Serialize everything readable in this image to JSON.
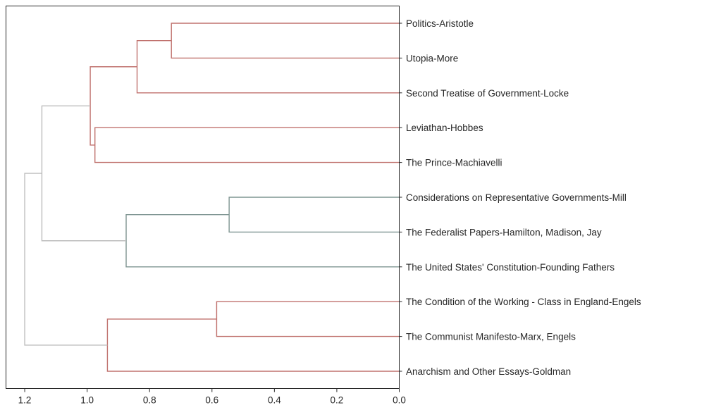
{
  "chart_data": {
    "type": "dendrogram",
    "orientation": "left",
    "xlim": [
      1.26,
      0.0
    ],
    "xticks": [
      {
        "value": 1.2,
        "label": "1.2"
      },
      {
        "value": 1.0,
        "label": "1.0"
      },
      {
        "value": 0.8,
        "label": "0.8"
      },
      {
        "value": 0.6,
        "label": "0.6"
      },
      {
        "value": 0.4,
        "label": "0.4"
      },
      {
        "value": 0.2,
        "label": "0.2"
      },
      {
        "value": 0.0,
        "label": "0.0"
      }
    ],
    "leaves": [
      "Politics-Aristotle",
      "Utopia-More",
      "Second Treatise of Government-Locke",
      "Leviathan-Hobbes",
      "The Prince-Machiavelli",
      "Considerations on Representative Governments-Mill",
      "The Federalist Papers-Hamilton, Madison, Jay",
      "The United States' Constitution-Founding Fathers",
      "The Condition of the Working - Class in England-Engels",
      "The Communist Manifesto-Marx, Engels",
      "Anarchism and Other Essays-Goldman"
    ],
    "merges": [
      {
        "id": "c1",
        "left": 0,
        "right": 1,
        "height": 0.73,
        "color": "#c0726e"
      },
      {
        "id": "c2",
        "left": "c1",
        "right": 2,
        "height": 0.84,
        "color": "#c0726e"
      },
      {
        "id": "c3",
        "left": 3,
        "right": 4,
        "height": 0.975,
        "color": "#c0726e"
      },
      {
        "id": "c4",
        "left": "c2",
        "right": "c3",
        "height": 0.99,
        "color": "#c0726e"
      },
      {
        "id": "c5",
        "left": 5,
        "right": 6,
        "height": 0.545,
        "color": "#7f9592"
      },
      {
        "id": "c6",
        "left": "c5",
        "right": 7,
        "height": 0.875,
        "color": "#7f9592"
      },
      {
        "id": "c7",
        "left": "c4",
        "right": "c6",
        "height": 1.145,
        "color": "#bdbdbd"
      },
      {
        "id": "c8",
        "left": 8,
        "right": 9,
        "height": 0.585,
        "color": "#c0726e"
      },
      {
        "id": "c9",
        "left": "c8",
        "right": 10,
        "height": 0.935,
        "color": "#c0726e"
      },
      {
        "id": "c10",
        "left": "c7",
        "right": "c9",
        "height": 1.2,
        "color": "#bdbdbd"
      }
    ]
  }
}
